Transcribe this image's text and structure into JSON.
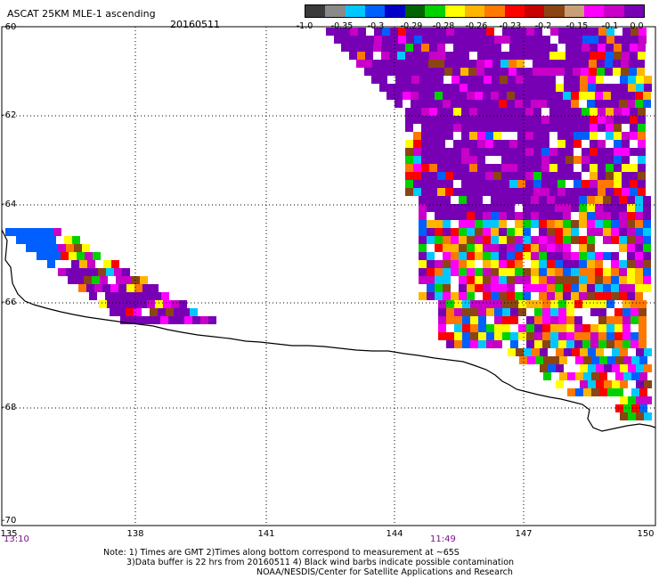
{
  "header": {
    "title": "ASCAT 25KM MLE-1 ascending",
    "date": "20160511"
  },
  "colorbar": {
    "colors": [
      "#3a3a3a",
      "#8a8a8a",
      "#00c8ff",
      "#0060ff",
      "#0000c8",
      "#006400",
      "#00d200",
      "#ffff00",
      "#ffb400",
      "#ff7800",
      "#ff0000",
      "#c80000",
      "#8b4513",
      "#c8a078",
      "#ff00ff",
      "#c800c8",
      "#7800b4"
    ],
    "labels": [
      "-1.0",
      "-0.35",
      "-0.3",
      "-0.29",
      "-0.28",
      "-0.26",
      "-0.23",
      "-0.2",
      "-0.15",
      "-0.1",
      "0.0"
    ]
  },
  "axes": {
    "lat_labels": [
      "-60",
      "-62",
      "-64",
      "-66",
      "-68",
      "-70"
    ],
    "lon_labels": [
      "135",
      "138",
      "141",
      "144",
      "147",
      "150"
    ]
  },
  "times": {
    "left": "13:10",
    "middle": "11:49"
  },
  "notes": {
    "line1": "Note: 1) Times are GMT 2)Times along bottom correspond to measurement at ~65S",
    "line2": "3)Data buffer is 22 hrs from 20160511 4) Black wind barbs indicate possible contamination",
    "line3": "NOAA/NESDIS/Center for Satellite Applications and Research"
  }
}
